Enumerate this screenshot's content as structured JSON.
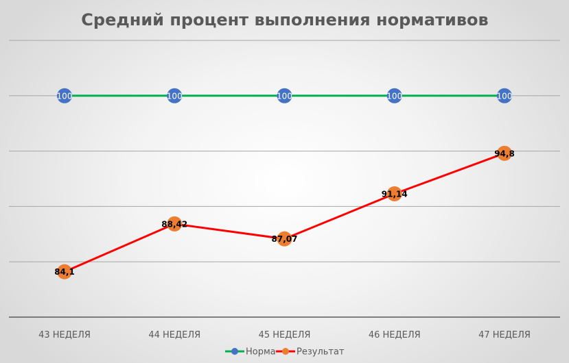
{
  "chart_data": {
    "type": "line",
    "title": "Средний процент выполнения нормативов",
    "categories": [
      "43 НЕДЕЛЯ",
      "44 НЕДЕЛЯ",
      "45 НЕДЕЛЯ",
      "46 НЕДЕЛЯ",
      "47 НЕДЕЛЯ"
    ],
    "series": [
      {
        "name": "Норма",
        "values": [
          100,
          100,
          100,
          100,
          100
        ],
        "data_labels": [
          "100",
          "100",
          "100",
          "100",
          "100"
        ],
        "line_color": "#00b050",
        "marker_color": "#4472c4"
      },
      {
        "name": "Результат",
        "values": [
          84.1,
          88.42,
          87.07,
          91.14,
          94.8
        ],
        "data_labels": [
          "84,1",
          "88,42",
          "87,07",
          "91,14",
          "94,8"
        ],
        "line_color": "#ff0000",
        "marker_color": "#ed7d31"
      }
    ],
    "ylim": [
      80,
      105
    ],
    "ytick_step": 5,
    "grid": true,
    "legend_position": "bottom",
    "xlabel": "",
    "ylabel": ""
  }
}
